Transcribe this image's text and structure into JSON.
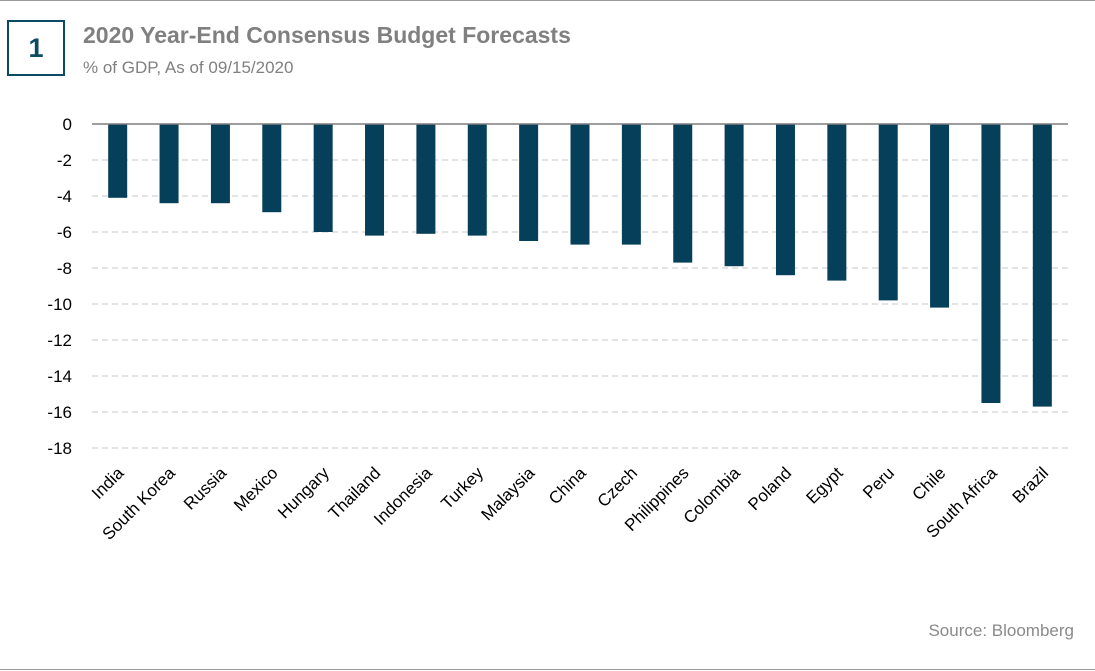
{
  "badge": "1",
  "title": "2020 Year-End Consensus Budget Forecasts",
  "subtitle": "% of GDP, As of 09/15/2020",
  "source": "Source: Bloomberg",
  "colors": {
    "bar": "#053f5a",
    "grid": "#c8c8c8",
    "axis": "#7f7f7f",
    "text": "#808080"
  },
  "chart_data": {
    "type": "bar",
    "title": "2020 Year-End Consensus Budget Forecasts",
    "subtitle": "% of GDP, As of 09/15/2020",
    "xlabel": "",
    "ylabel": "",
    "ylim": [
      -18,
      0
    ],
    "yticks": [
      0,
      -2,
      -4,
      -6,
      -8,
      -10,
      -12,
      -14,
      -16,
      -18
    ],
    "grid": true,
    "categories": [
      "India",
      "South Korea",
      "Russia",
      "Mexico",
      "Hungary",
      "Thailand",
      "Indonesia",
      "Turkey",
      "Malaysia",
      "China",
      "Czech",
      "Philippines",
      "Colombia",
      "Poland",
      "Egypt",
      "Peru",
      "Chile",
      "South Africa",
      "Brazil"
    ],
    "values": [
      -4.1,
      -4.4,
      -4.4,
      -4.9,
      -6.0,
      -6.2,
      -6.1,
      -6.2,
      -6.5,
      -6.7,
      -6.7,
      -7.7,
      -7.9,
      -8.4,
      -8.7,
      -9.8,
      -10.2,
      -15.5,
      -15.7
    ]
  }
}
